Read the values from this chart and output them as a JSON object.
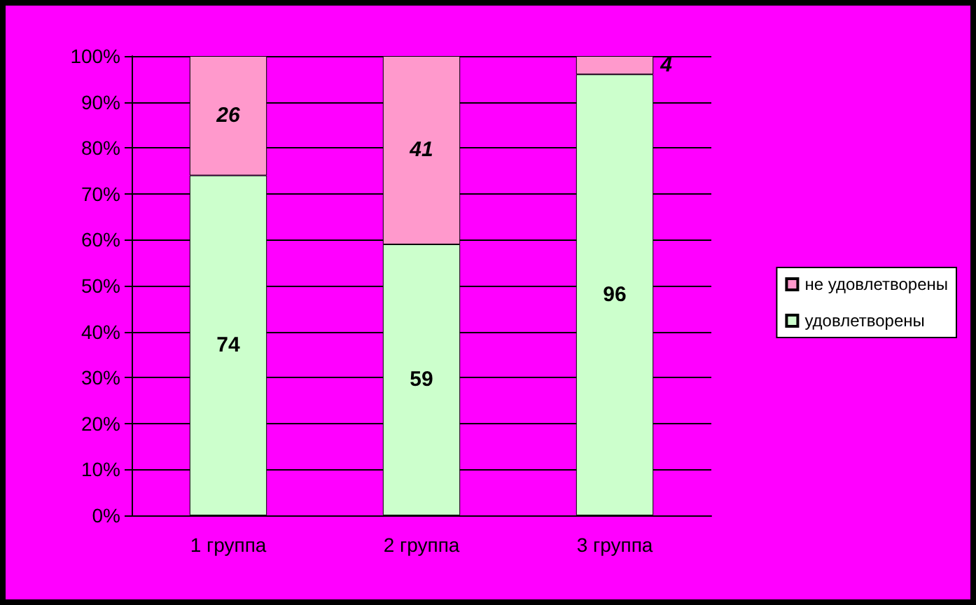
{
  "chart_data": {
    "type": "bar",
    "stacked": true,
    "categories": [
      "1 группа",
      "2 группа",
      "3 группа"
    ],
    "series": [
      {
        "name": "удовлетворены",
        "color": "#ccffcc",
        "values": [
          74,
          59,
          96
        ]
      },
      {
        "name": "не удовлетворены",
        "color": "#ff99cc",
        "values": [
          26,
          41,
          4
        ]
      }
    ],
    "ylim": [
      0,
      100
    ],
    "yticks": [
      {
        "value": 0,
        "label": "0%"
      },
      {
        "value": 10,
        "label": "10%"
      },
      {
        "value": 20,
        "label": "20%"
      },
      {
        "value": 30,
        "label": "30%"
      },
      {
        "value": 40,
        "label": "40%"
      },
      {
        "value": 50,
        "label": "50%"
      },
      {
        "value": 60,
        "label": "60%"
      },
      {
        "value": 70,
        "label": "70%"
      },
      {
        "value": 80,
        "label": "80%"
      },
      {
        "value": 90,
        "label": "90%"
      },
      {
        "value": 100,
        "label": "100%"
      }
    ],
    "grid": "y",
    "legend": "right",
    "data_labels": true
  }
}
